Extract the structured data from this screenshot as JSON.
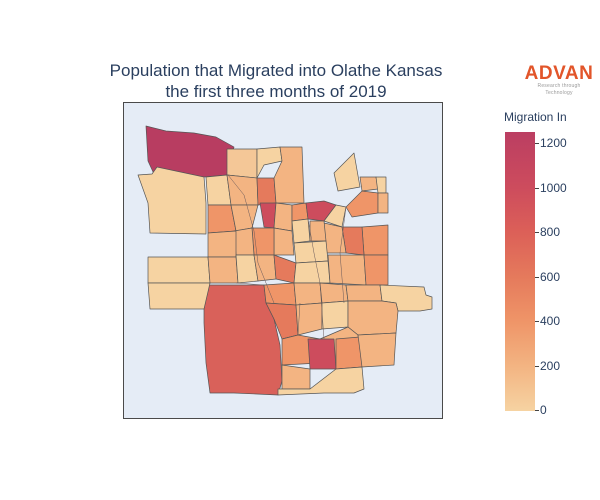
{
  "title_line1": "Population that Migrated into Olathe Kansas",
  "title_line2": "the first three months of 2019",
  "logo": {
    "name": "ADVAN",
    "tagline": "Research through Technology",
    "color": "#e2552a"
  },
  "colorbar": {
    "title": "Migration In",
    "ticks": [
      "0",
      "200",
      "400",
      "600",
      "800",
      "1000",
      "1200"
    ],
    "min": 0,
    "max": 1250,
    "colors": [
      "#f6d3a2",
      "#f3b482",
      "#ef9568",
      "#e57a5c",
      "#dc6058",
      "#cd4c5d",
      "#bb3e62"
    ]
  },
  "map": {
    "background": "#e5ecf6",
    "border_color": "#4a4a4a"
  }
}
